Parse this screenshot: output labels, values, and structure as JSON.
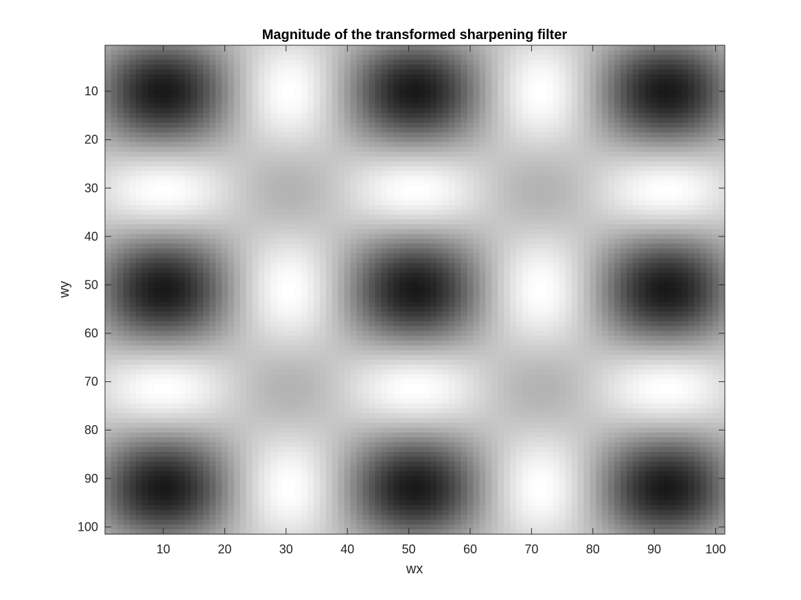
{
  "chart_data": {
    "type": "heatmap",
    "title": "Magnitude of the transformed sharpening filter",
    "xlabel": "wx",
    "ylabel": "wy",
    "colormap": "gray",
    "grid": false,
    "x_range": [
      1,
      101
    ],
    "y_range": [
      1,
      101
    ],
    "xlim": [
      0.5,
      101.5
    ],
    "ylim": [
      0.5,
      101.5
    ],
    "y_direction": "reverse",
    "x_ticks": [
      10,
      20,
      30,
      40,
      50,
      60,
      70,
      80,
      90,
      100
    ],
    "y_ticks": [
      10,
      20,
      30,
      40,
      50,
      60,
      70,
      80,
      90,
      100
    ],
    "x_tick_labels": [
      "10",
      "20",
      "30",
      "40",
      "50",
      "60",
      "70",
      "80",
      "90",
      "100"
    ],
    "y_tick_labels": [
      "10",
      "20",
      "30",
      "40",
      "50",
      "60",
      "70",
      "80",
      "90",
      "100"
    ],
    "pattern": "magnitude of frequency response of a 3x3 sharpening kernel: dark minimum at center (51,51), bright side-lobes near (30,51), (72,51), (51,30), (51,72)"
  }
}
